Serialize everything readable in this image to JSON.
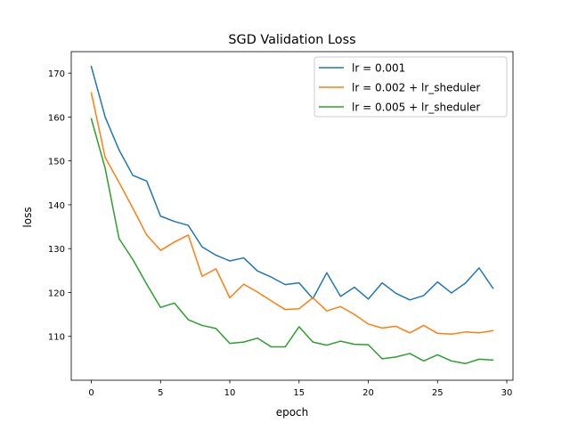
{
  "chart_data": {
    "type": "line",
    "title": "SGD Validation Loss",
    "xlabel": "epoch",
    "ylabel": "loss",
    "xlim": [
      -1.45,
      30.45
    ],
    "ylim": [
      100.0,
      174.9
    ],
    "xticks": [
      0,
      5,
      10,
      15,
      20,
      25,
      30
    ],
    "xtick_labels": [
      "0",
      "5",
      "10",
      "15",
      "20",
      "25",
      "30"
    ],
    "yticks": [
      110,
      120,
      130,
      140,
      150,
      160,
      170
    ],
    "ytick_labels": [
      "110",
      "120",
      "130",
      "140",
      "150",
      "160",
      "170"
    ],
    "grid": false,
    "legend_position": "top-right",
    "x": [
      0,
      1,
      2,
      3,
      4,
      5,
      6,
      7,
      8,
      9,
      10,
      11,
      12,
      13,
      14,
      15,
      16,
      17,
      18,
      19,
      20,
      21,
      22,
      23,
      24,
      25,
      26,
      27,
      28,
      29
    ],
    "series": [
      {
        "name": "lr = 0.001",
        "color": "#1f77b4",
        "values": [
          171.5,
          160.0,
          152.5,
          146.7,
          145.4,
          137.4,
          136.2,
          135.3,
          130.4,
          128.5,
          127.2,
          127.9,
          124.9,
          123.5,
          121.8,
          122.2,
          118.6,
          124.5,
          119.1,
          121.2,
          118.5,
          122.2,
          119.8,
          118.3,
          119.3,
          122.4,
          119.9,
          122.1,
          125.6,
          121.0
        ]
      },
      {
        "name": "lr = 0.002 + lr_sheduler",
        "color": "#ff7f0e",
        "values": [
          165.5,
          150.8,
          145.1,
          139.2,
          133.1,
          129.6,
          131.5,
          133.1,
          123.7,
          125.4,
          118.8,
          121.9,
          120.1,
          118.1,
          116.1,
          116.3,
          118.8,
          115.8,
          116.8,
          115.0,
          112.8,
          111.9,
          112.3,
          110.8,
          112.5,
          110.7,
          110.5,
          111.0,
          110.8,
          111.3
        ]
      },
      {
        "name": "lr = 0.005 + lr_sheduler",
        "color": "#2ca02c",
        "values": [
          159.6,
          148.3,
          132.3,
          127.5,
          121.9,
          116.6,
          117.6,
          113.8,
          112.5,
          111.8,
          108.4,
          108.7,
          109.6,
          107.6,
          107.6,
          112.2,
          108.7,
          108.0,
          108.9,
          108.2,
          108.1,
          104.9,
          105.3,
          106.1,
          104.4,
          105.8,
          104.4,
          103.8,
          104.8,
          104.6
        ]
      }
    ]
  }
}
